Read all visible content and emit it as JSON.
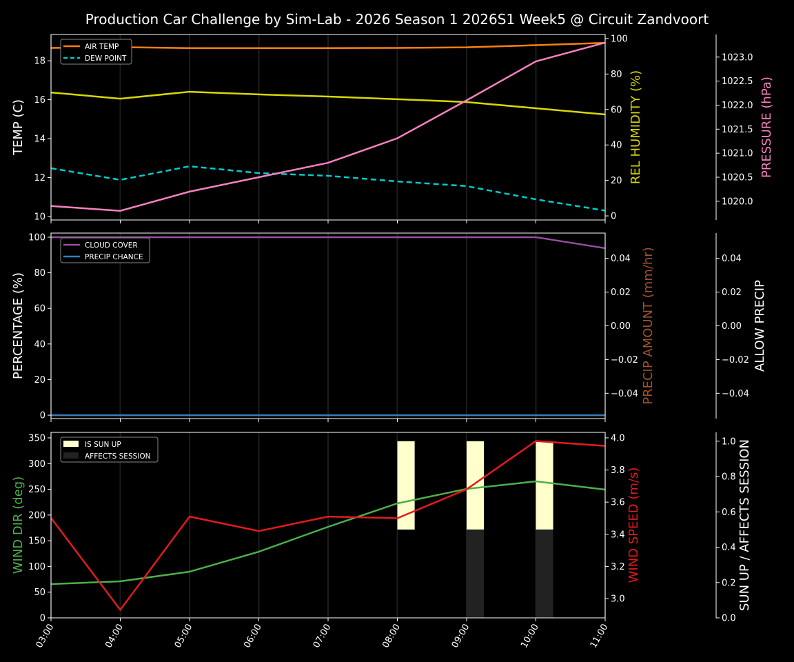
{
  "title": "Production Car Challenge by Sim-Lab - 2026 Season 1 2026S1 Week5 @ Circuit Zandvoort",
  "chart_data": [
    {
      "type": "line",
      "x": [
        "03:00",
        "04:00",
        "05:00",
        "06:00",
        "07:00",
        "08:00",
        "09:00",
        "10:00",
        "11:00"
      ],
      "grid": "vertical",
      "legend_placement": "top-left",
      "axes": {
        "left": {
          "label": "TEMP (C)",
          "color": "#ffffff",
          "ylim": [
            9.82,
            19.35
          ],
          "ticks": [
            "10",
            "12",
            "14",
            "16",
            "18"
          ]
        },
        "right": {
          "label": "REL HUMIDITY (%)",
          "color": "#d8d800",
          "ylim": [
            -2.3,
            102.3
          ],
          "ticks": [
            "0",
            "20",
            "40",
            "60",
            "80",
            "100"
          ]
        },
        "outer": {
          "label": "PRESSURE (hPa)",
          "color": "#f781bf",
          "ylim": [
            1019.61,
            1023.47
          ],
          "ticks": [
            "1020.0",
            "1020.5",
            "1021.0",
            "1021.5",
            "1022.0",
            "1022.5",
            "1023.0"
          ]
        }
      },
      "series": [
        {
          "name": "AIR TEMP",
          "axis": "left",
          "color": "#ff7f0e",
          "dash": false,
          "legend": true,
          "values": [
            18.66,
            18.7,
            18.65,
            18.65,
            18.65,
            18.66,
            18.69,
            18.8,
            18.92
          ]
        },
        {
          "name": "DEW POINT",
          "axis": "left",
          "color": "#00cccc",
          "dash": true,
          "legend": true,
          "values": [
            12.48,
            11.88,
            12.58,
            12.23,
            12.09,
            11.8,
            11.56,
            10.88,
            10.3
          ]
        },
        {
          "axis": "right",
          "color": "#d8d800",
          "dash": false,
          "legend": false,
          "values": [
            69.6,
            66.1,
            70.0,
            68.5,
            67.3,
            65.8,
            64.2,
            60.7,
            57.2
          ]
        },
        {
          "axis": "outer",
          "color": "#f781bf",
          "dash": false,
          "legend": false,
          "values": [
            1019.9,
            1019.8,
            1020.2,
            1020.5,
            1020.8,
            1021.31,
            1022.1,
            1022.91,
            1023.3
          ]
        }
      ]
    },
    {
      "type": "line",
      "x": [
        "03:00",
        "04:00",
        "05:00",
        "06:00",
        "07:00",
        "08:00",
        "09:00",
        "10:00",
        "11:00"
      ],
      "grid": "vertical",
      "legend_placement": "top-left",
      "axes": {
        "left": {
          "label": "PERCENTAGE (%)",
          "color": "#ffffff",
          "ylim": [
            -1.9,
            102.3
          ],
          "ticks": [
            "0",
            "20",
            "40",
            "60",
            "80",
            "100"
          ]
        },
        "right": {
          "label": "PRECIP AMOUNT (mm/hr)",
          "color": "#a0522d",
          "ylim": [
            -0.055,
            0.055
          ],
          "ticks": [
            "−0.04",
            "−0.02",
            "0.00",
            "0.02",
            "0.04"
          ]
        },
        "outer": {
          "label": "ALLOW PRECIP",
          "color": "#ffffff",
          "ylim": [
            -0.055,
            0.055
          ],
          "ticks": [
            "−0.04",
            "−0.02",
            "0.00",
            "0.02",
            "0.04"
          ]
        }
      },
      "series": [
        {
          "name": "CLOUD COVER",
          "axis": "left",
          "color": "#984ea3",
          "dash": false,
          "legend": true,
          "values": [
            100,
            100,
            100,
            100,
            100,
            100,
            100,
            100,
            93.8
          ]
        },
        {
          "name": "PRECIP CHANCE",
          "axis": "left",
          "color": "#377eb8",
          "dash": false,
          "legend": true,
          "values": [
            0,
            0,
            0,
            0,
            0,
            0,
            0,
            0,
            0
          ]
        }
      ]
    },
    {
      "type": "line",
      "x": [
        "03:00",
        "04:00",
        "05:00",
        "06:00",
        "07:00",
        "08:00",
        "09:00",
        "10:00",
        "11:00"
      ],
      "grid": "vertical",
      "legend_placement": "top-left",
      "axes": {
        "left": {
          "label": "WIND DIR (deg)",
          "color": "#4daf4a",
          "ylim": [
            0,
            360.7
          ],
          "ticks": [
            "0",
            "50",
            "100",
            "150",
            "200",
            "250",
            "300",
            "350"
          ]
        },
        "right": {
          "label": "WIND SPEED (m/s)",
          "color": "#e41a1c",
          "ylim": [
            2.88,
            4.034
          ],
          "ticks": [
            "3.0",
            "3.2",
            "3.4",
            "3.6",
            "3.8",
            "4.0"
          ]
        },
        "outer": {
          "label": "SUN UP / AFFECTS SESSION",
          "color": "#ffffff",
          "ylim": [
            0,
            1.05
          ],
          "ticks": [
            "0.0",
            "0.2",
            "0.4",
            "0.6",
            "0.8",
            "1.0"
          ]
        }
      },
      "bars": [
        {
          "name": "IS SUN UP",
          "axis": "outer",
          "color": "#ffffcc",
          "legend": true,
          "values": [
            0,
            0,
            0,
            0,
            0,
            0.5,
            0.5,
            0.5,
            0
          ],
          "bottoms": [
            0.5,
            0.5,
            0.5,
            0.5,
            0.5,
            0.5,
            0.5,
            0.5,
            0.5
          ]
        },
        {
          "name": "AFFECTS SESSION",
          "axis": "outer",
          "color": "#222222",
          "legend": true,
          "values": [
            0,
            0,
            0,
            0,
            0,
            0,
            0.5,
            0.5,
            0
          ],
          "bottoms": [
            0,
            0,
            0,
            0,
            0,
            0,
            0,
            0,
            0
          ]
        }
      ],
      "series": [
        {
          "axis": "left",
          "color": "#4daf4a",
          "dash": false,
          "legend": false,
          "values": [
            65.7,
            71,
            89.8,
            128.7,
            177,
            222.6,
            250.8,
            265.5,
            249.4
          ]
        },
        {
          "axis": "right",
          "color": "#e41a1c",
          "dash": false,
          "legend": false,
          "values": [
            3.502,
            2.93,
            3.51,
            3.42,
            3.51,
            3.5,
            3.68,
            3.98,
            3.95
          ]
        }
      ]
    }
  ]
}
